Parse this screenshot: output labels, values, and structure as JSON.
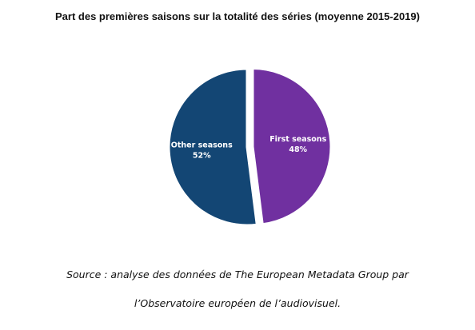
{
  "chart_data": {
    "type": "pie",
    "title": "Part des premières saisons sur la totalité des séries (moyenne 2015-2019)",
    "slices": [
      {
        "name": "First seasons",
        "value": 48,
        "value_label": "48%",
        "color": "#7030a0",
        "exploded": true
      },
      {
        "name": "Other seasons",
        "value": 52,
        "value_label": "52%",
        "color": "#134674",
        "exploded": false
      }
    ],
    "start_angle": "12 o'clock",
    "direction": "clockwise",
    "legend": "none"
  },
  "source": {
    "line1": "Source : analyse des données de The European Metadata Group par",
    "line2": "l’Observatoire européen de l’audiovisuel."
  }
}
